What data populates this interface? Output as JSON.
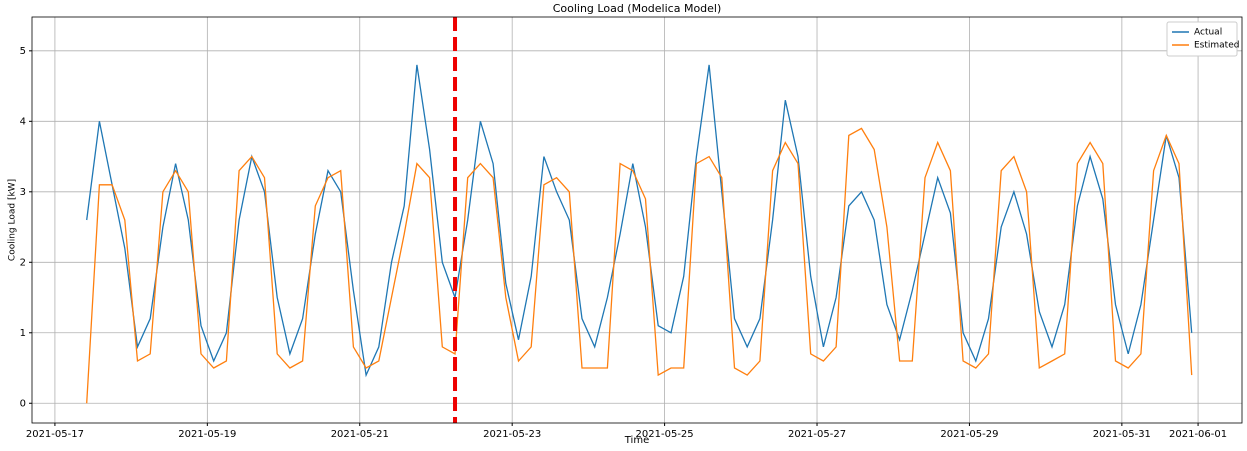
{
  "chart_data": {
    "type": "line",
    "title": "Cooling Load (Modelica Model)",
    "x_label": "Time",
    "y_label": "Cooling Load [kW]",
    "x": [
      "2021-05-17 10:00",
      "2021-05-17 14:00",
      "2021-05-17 18:00",
      "2021-05-17 22:00",
      "2021-05-18 02:00",
      "2021-05-18 06:00",
      "2021-05-18 10:00",
      "2021-05-18 14:00",
      "2021-05-18 18:00",
      "2021-05-18 22:00",
      "2021-05-19 02:00",
      "2021-05-19 06:00",
      "2021-05-19 10:00",
      "2021-05-19 14:00",
      "2021-05-19 18:00",
      "2021-05-19 22:00",
      "2021-05-20 02:00",
      "2021-05-20 06:00",
      "2021-05-20 10:00",
      "2021-05-20 14:00",
      "2021-05-20 18:00",
      "2021-05-20 22:00",
      "2021-05-21 02:00",
      "2021-05-21 06:00",
      "2021-05-21 10:00",
      "2021-05-21 14:00",
      "2021-05-21 18:00",
      "2021-05-21 22:00",
      "2021-05-22 02:00",
      "2021-05-22 06:00",
      "2021-05-22 10:00",
      "2021-05-22 14:00",
      "2021-05-22 18:00",
      "2021-05-22 22:00",
      "2021-05-23 02:00",
      "2021-05-23 06:00",
      "2021-05-23 10:00",
      "2021-05-23 14:00",
      "2021-05-23 18:00",
      "2021-05-23 22:00",
      "2021-05-24 02:00",
      "2021-05-24 06:00",
      "2021-05-24 10:00",
      "2021-05-24 14:00",
      "2021-05-24 18:00",
      "2021-05-24 22:00",
      "2021-05-25 02:00",
      "2021-05-25 06:00",
      "2021-05-25 10:00",
      "2021-05-25 14:00",
      "2021-05-25 18:00",
      "2021-05-25 22:00",
      "2021-05-26 02:00",
      "2021-05-26 06:00",
      "2021-05-26 10:00",
      "2021-05-26 14:00",
      "2021-05-26 18:00",
      "2021-05-26 22:00",
      "2021-05-27 02:00",
      "2021-05-27 06:00",
      "2021-05-27 10:00",
      "2021-05-27 14:00",
      "2021-05-27 18:00",
      "2021-05-27 22:00",
      "2021-05-28 02:00",
      "2021-05-28 06:00",
      "2021-05-28 10:00",
      "2021-05-28 14:00",
      "2021-05-28 18:00",
      "2021-05-28 22:00",
      "2021-05-29 02:00",
      "2021-05-29 06:00",
      "2021-05-29 10:00",
      "2021-05-29 14:00",
      "2021-05-29 18:00",
      "2021-05-29 22:00",
      "2021-05-30 02:00",
      "2021-05-30 06:00",
      "2021-05-30 10:00",
      "2021-05-30 14:00",
      "2021-05-30 18:00",
      "2021-05-30 22:00",
      "2021-05-31 02:00",
      "2021-05-31 06:00",
      "2021-05-31 10:00",
      "2021-05-31 14:00",
      "2021-05-31 18:00",
      "2021-05-31 22:00"
    ],
    "series": [
      {
        "name": "Actual",
        "color": "#1f77b4",
        "values": [
          2.6,
          4.0,
          3.1,
          2.2,
          0.8,
          1.2,
          2.5,
          3.4,
          2.6,
          1.1,
          0.6,
          1.0,
          2.6,
          3.5,
          3.0,
          1.5,
          0.7,
          1.2,
          2.4,
          3.3,
          3.0,
          1.6,
          0.4,
          0.8,
          2.0,
          2.8,
          4.8,
          3.6,
          2.0,
          1.5,
          2.6,
          4.0,
          3.4,
          1.7,
          0.9,
          1.8,
          3.5,
          3.0,
          2.6,
          1.2,
          0.8,
          1.5,
          2.4,
          3.4,
          2.5,
          1.1,
          1.0,
          1.8,
          3.5,
          4.8,
          3.0,
          1.2,
          0.8,
          1.2,
          2.6,
          4.3,
          3.5,
          1.8,
          0.8,
          1.5,
          2.8,
          3.0,
          2.6,
          1.4,
          0.9,
          1.6,
          2.4,
          3.2,
          2.7,
          1.0,
          0.6,
          1.2,
          2.5,
          3.0,
          2.4,
          1.3,
          0.8,
          1.4,
          2.8,
          3.5,
          2.9,
          1.4,
          0.7,
          1.4,
          2.6,
          3.8,
          3.2,
          1.0
        ]
      },
      {
        "name": "Estimated",
        "color": "#ff7f0e",
        "values": [
          0,
          3.1,
          3.1,
          2.6,
          0.6,
          0.7,
          3.0,
          3.3,
          3.0,
          0.7,
          0.5,
          0.6,
          3.3,
          3.5,
          3.2,
          0.7,
          0.5,
          0.6,
          2.8,
          3.2,
          3.3,
          0.8,
          0.5,
          0.6,
          1.5,
          2.4,
          3.4,
          3.2,
          0.8,
          0.7,
          3.2,
          3.4,
          3.2,
          1.5,
          0.6,
          0.8,
          3.1,
          3.2,
          3.0,
          0.5,
          0.5,
          0.5,
          3.4,
          3.3,
          2.9,
          0.4,
          0.5,
          0.5,
          3.4,
          3.5,
          3.2,
          0.5,
          0.4,
          0.6,
          3.3,
          3.7,
          3.4,
          0.7,
          0.6,
          0.8,
          3.8,
          3.9,
          3.6,
          2.5,
          0.6,
          0.6,
          3.2,
          3.7,
          3.3,
          0.6,
          0.5,
          0.7,
          3.3,
          3.5,
          3.0,
          0.5,
          0.6,
          0.7,
          3.4,
          3.7,
          3.4,
          0.6,
          0.5,
          0.7,
          3.3,
          3.8,
          3.4,
          0.4
        ]
      }
    ],
    "xlim": [
      "2021-05-16 16:47",
      "2021-06-01 13:50"
    ],
    "xticks": [
      "2021-05-17",
      "2021-05-19",
      "2021-05-21",
      "2021-05-23",
      "2021-05-25",
      "2021-05-27",
      "2021-05-29",
      "2021-05-31",
      "2021-06-01"
    ],
    "ylim": [
      -0.28,
      5.48
    ],
    "yticks": [
      0,
      1,
      2,
      3,
      4,
      5
    ],
    "grid": true,
    "legend": "upper right",
    "vline": {
      "x": "2021-05-22 06:00",
      "color": "#ee0000"
    }
  }
}
